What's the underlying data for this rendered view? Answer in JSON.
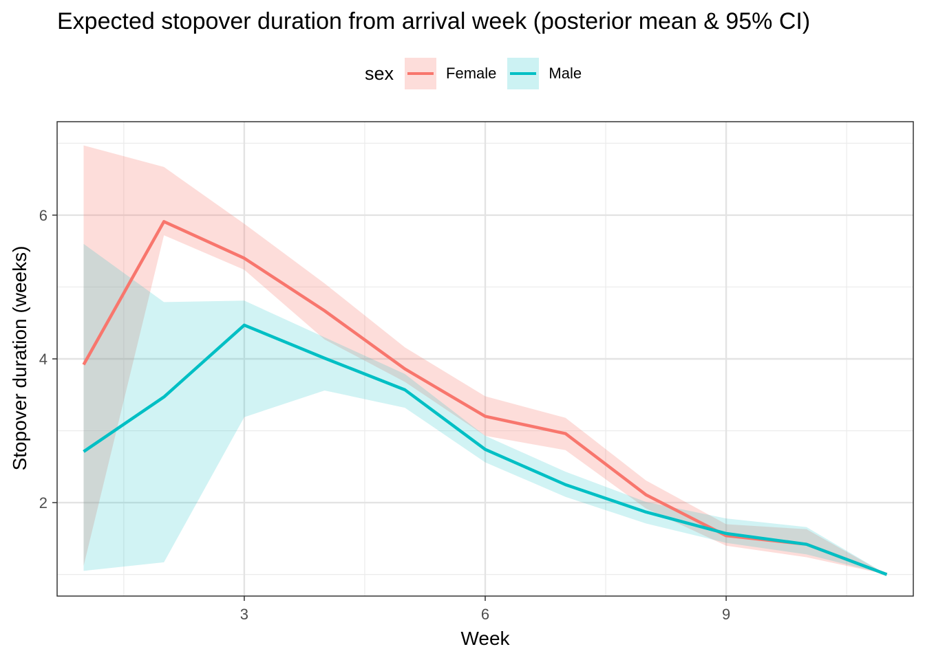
{
  "chart_data": {
    "type": "line",
    "title": "Expected stopover duration from arrival week (posterior mean & 95% CI)",
    "xlabel": "Week",
    "ylabel": "Stopover duration (weeks)",
    "xlim": [
      0.67,
      11.33
    ],
    "ylim": [
      0.7,
      7.3
    ],
    "x_ticks": [
      3,
      6,
      9
    ],
    "y_ticks": [
      2,
      4,
      6
    ],
    "grid": true,
    "legend": {
      "title": "sex",
      "position": "top"
    },
    "x": [
      1,
      2,
      3,
      4,
      5,
      6,
      7,
      8,
      9,
      10,
      11
    ],
    "series": [
      {
        "name": "Female",
        "color": "#F8766D",
        "band_color": "#F8766D",
        "values": [
          3.92,
          5.91,
          5.4,
          4.67,
          3.86,
          3.2,
          2.96,
          2.11,
          1.54,
          1.42,
          1.0
        ],
        "lower": [
          1.12,
          5.72,
          5.24,
          4.27,
          3.68,
          2.93,
          2.73,
          1.92,
          1.4,
          1.24,
          1.0
        ],
        "upper": [
          6.97,
          6.67,
          5.88,
          5.05,
          4.16,
          3.48,
          3.18,
          2.31,
          1.7,
          1.63,
          1.0
        ]
      },
      {
        "name": "Male",
        "color": "#00BFC4",
        "band_color": "#00BFC4",
        "values": [
          2.71,
          3.47,
          4.47,
          4.01,
          3.57,
          2.74,
          2.25,
          1.87,
          1.57,
          1.42,
          1.0
        ],
        "lower": [
          1.05,
          1.17,
          3.19,
          3.56,
          3.32,
          2.56,
          2.08,
          1.71,
          1.44,
          1.28,
          1.0
        ],
        "upper": [
          5.6,
          4.79,
          4.81,
          4.3,
          3.79,
          2.93,
          2.43,
          2.01,
          1.78,
          1.66,
          1.0
        ]
      }
    ]
  }
}
